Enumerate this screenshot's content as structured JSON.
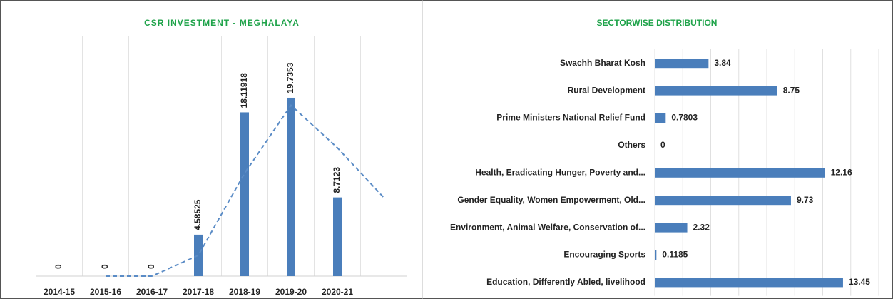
{
  "chart_data": [
    {
      "type": "bar",
      "title": "CSR INVESTMENT - MEGHALAYA",
      "categories": [
        "2014-15",
        "2015-16",
        "2016-17",
        "2017-18",
        "2018-19",
        "2019-20",
        "2020-21",
        null
      ],
      "values": [
        0,
        0,
        0,
        4.58525,
        18.11918,
        19.7353,
        8.7123,
        null
      ],
      "trend_values": [
        null,
        0,
        0,
        2.3,
        11.4,
        18.9,
        14.2,
        8.7
      ],
      "color": "#4a7ebb",
      "trend_color": "#5b8cc6",
      "ylim": [
        0,
        26.6
      ]
    },
    {
      "type": "hbar",
      "title": "SECTORWISE DISTRIBUTION",
      "categories": [
        "Swachh Bharat Kosh",
        "Rural Development",
        "Prime Ministers National Relief Fund",
        "Others",
        "Health, Eradicating Hunger, Poverty and...",
        "Gender Equality, Women Empowerment, Old...",
        "Environment, Animal Welfare, Conservation of...",
        "Encouraging Sports",
        "Education, Differently Abled, livelihood"
      ],
      "values": [
        3.84,
        8.75,
        0.7803,
        0,
        12.16,
        9.73,
        2.32,
        0.1185,
        13.45
      ],
      "color": "#4a7ebb",
      "xlim": [
        0,
        16
      ],
      "xticks": [
        0,
        2,
        4,
        6,
        8,
        10,
        12,
        14,
        16
      ],
      "grid": true
    }
  ]
}
